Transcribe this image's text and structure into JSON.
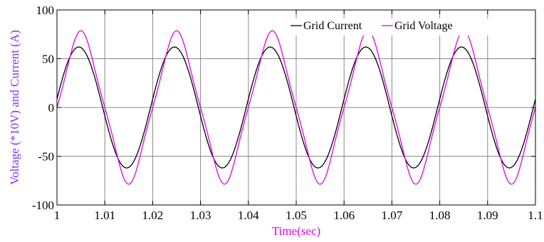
{
  "chart_data": {
    "type": "line",
    "xlabel": "Time(sec)",
    "ylabel": "Voltage (*10V) and Current (A)",
    "xlim": [
      1,
      1.1
    ],
    "ylim": [
      -100,
      100
    ],
    "x_ticks": [
      1,
      1.01,
      1.02,
      1.03,
      1.04,
      1.05,
      1.06,
      1.07,
      1.08,
      1.09,
      1.1
    ],
    "x_tick_labels": [
      "1",
      "1.01",
      "1.02",
      "1.03",
      "1.04",
      "1.05",
      "1.06",
      "1.07",
      "1.08",
      "1.09",
      "1.1"
    ],
    "y_ticks": [
      100,
      50,
      0,
      -50,
      -100
    ],
    "y_tick_labels": [
      "100",
      "50",
      "0",
      "-50",
      "-100"
    ],
    "grid": true,
    "legend_position": "top-right",
    "series": [
      {
        "name": "Grid Current",
        "color": "#000000",
        "frequency_hz": 50,
        "amplitude": 62,
        "peak_flatness": 0,
        "x": [
          1,
          1.0025,
          1.005,
          1.0075,
          1.01,
          1.0125,
          1.015,
          1.0175,
          1.02,
          1.0225,
          1.025,
          1.0275,
          1.03,
          1.0325,
          1.035,
          1.0375,
          1.04,
          1.0425,
          1.045,
          1.0475,
          1.05,
          1.0525,
          1.055,
          1.0575,
          1.06,
          1.0625,
          1.065,
          1.0675,
          1.07,
          1.0725,
          1.075,
          1.0775,
          1.08,
          1.0825,
          1.085,
          1.0875,
          1.09,
          1.0925,
          1.095,
          1.0975,
          1.1
        ],
        "y": [
          8,
          48,
          62,
          48,
          0,
          -44,
          -62,
          -44,
          0,
          44,
          62,
          44,
          0,
          -44,
          -62,
          -44,
          0,
          44,
          62,
          44,
          0,
          -44,
          -62,
          -44,
          0,
          44,
          62,
          44,
          0,
          -44,
          -62,
          -44,
          0,
          44,
          62,
          44,
          0,
          -44,
          -62,
          -44,
          8
        ]
      },
      {
        "name": "Grid Voltage",
        "color": "#e600e6",
        "frequency_hz": 50,
        "amplitude": 67,
        "peak_flatness": 0.08,
        "x": [
          1,
          1.0025,
          1.005,
          1.0075,
          1.01,
          1.0125,
          1.015,
          1.0175,
          1.02,
          1.0225,
          1.025,
          1.0275,
          1.03,
          1.0325,
          1.035,
          1.0375,
          1.04,
          1.0425,
          1.045,
          1.0475,
          1.05,
          1.0525,
          1.055,
          1.0575,
          1.06,
          1.0625,
          1.065,
          1.0675,
          1.07,
          1.0725,
          1.075,
          1.0775,
          1.08,
          1.0825,
          1.085,
          1.0875,
          1.09,
          1.0925,
          1.095,
          1.0975,
          1.1
        ],
        "y": [
          0,
          50,
          67,
          55,
          5,
          -50,
          -67,
          -55,
          -5,
          50,
          67,
          55,
          5,
          -50,
          -67,
          -55,
          -5,
          50,
          67,
          55,
          5,
          -50,
          -67,
          -55,
          -5,
          50,
          67,
          55,
          5,
          -50,
          -67,
          -55,
          -5,
          50,
          67,
          55,
          5,
          -50,
          -67,
          -55,
          0
        ]
      }
    ]
  },
  "colors": {
    "ylabel": "#7f33ff",
    "xlabel": "#e600e6",
    "grid": "#888888",
    "axis": "#000000"
  }
}
